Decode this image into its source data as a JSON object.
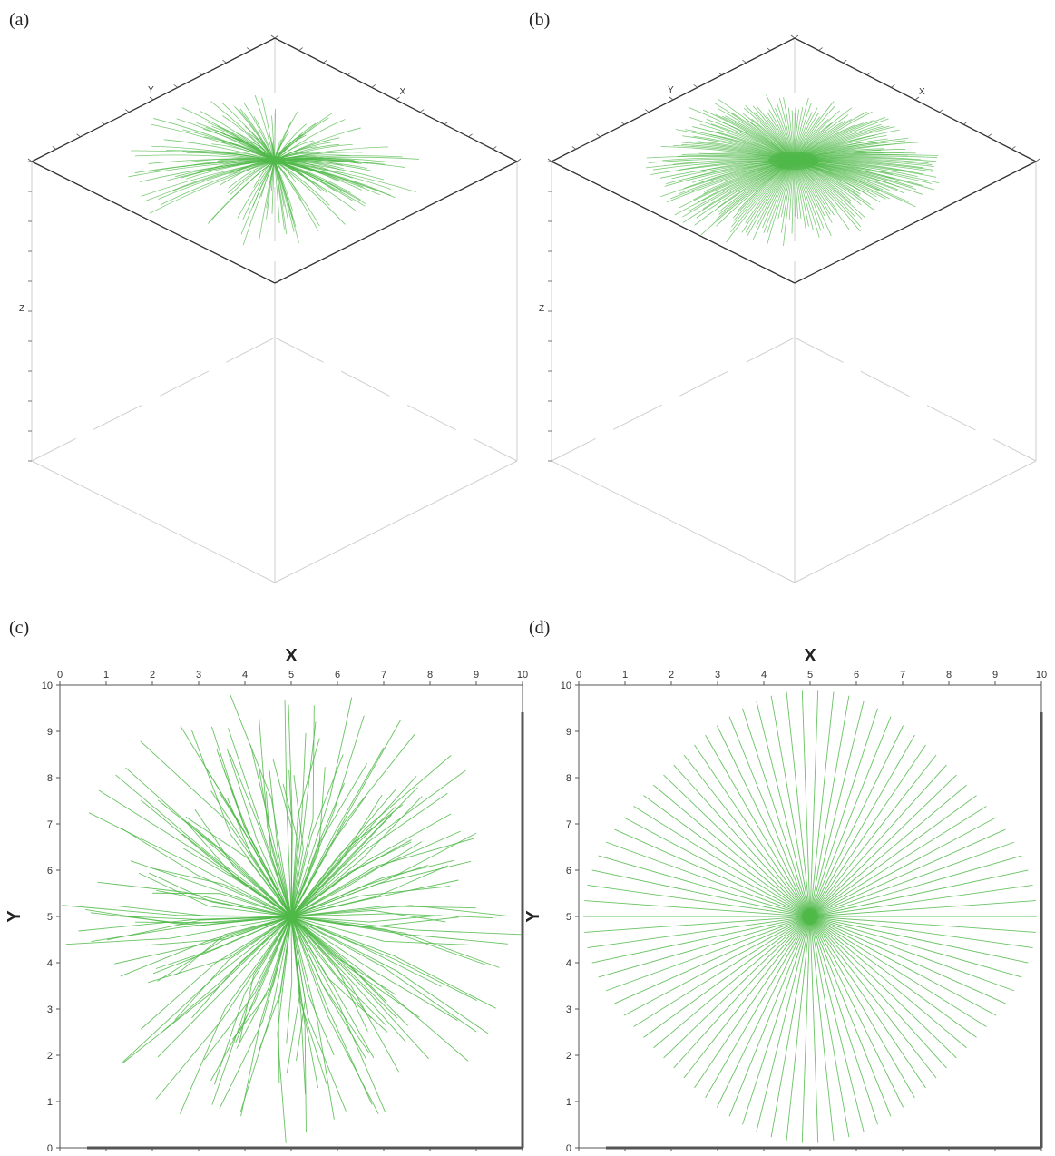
{
  "figure": {
    "panels": [
      {
        "id": "a",
        "label": "(a)"
      },
      {
        "id": "b",
        "label": "(b)"
      },
      {
        "id": "c",
        "label": "(c)"
      },
      {
        "id": "d",
        "label": "(d)"
      }
    ]
  },
  "colors": {
    "ray": "#4fb848",
    "frame": "#333333",
    "hidden_frame": "#cfcfcf"
  },
  "chart_data": [
    {
      "panel": "a",
      "type": "line",
      "projection": "3d",
      "axis_labels": {
        "x": "X",
        "y": "Y",
        "z": "Z"
      },
      "xlim": [
        0,
        10
      ],
      "ylim": [
        0,
        10
      ],
      "zlim": [
        0,
        10
      ],
      "source": [
        5,
        5,
        10
      ],
      "series": [
        {
          "rays": 180,
          "pattern": "scattered_fan",
          "max_radius": 4.8
        }
      ]
    },
    {
      "panel": "b",
      "type": "line",
      "projection": "3d",
      "axis_labels": {
        "x": "X",
        "y": "Y",
        "z": "Z"
      },
      "xlim": [
        0,
        10
      ],
      "ylim": [
        0,
        10
      ],
      "zlim": [
        0,
        10
      ],
      "source": [
        5,
        5,
        10
      ],
      "series": [
        {
          "rays": 220,
          "pattern": "regular_fan",
          "max_radius": 4.8
        }
      ]
    },
    {
      "panel": "c",
      "type": "line",
      "xlabel": "X",
      "ylabel": "Y",
      "xlim": [
        0,
        10
      ],
      "ylim": [
        0,
        10
      ],
      "xticks": [
        "0",
        "1",
        "2",
        "3",
        "4",
        "5",
        "6",
        "7",
        "8",
        "9",
        "10"
      ],
      "yticks": [
        "0",
        "1",
        "2",
        "3",
        "4",
        "5",
        "6",
        "7",
        "8",
        "9",
        "10"
      ],
      "source": [
        5,
        5
      ],
      "series": [
        {
          "rays": 170,
          "pattern": "scattered_star",
          "max_radius": 5.0
        }
      ]
    },
    {
      "panel": "d",
      "type": "line",
      "xlabel": "X",
      "ylabel": "Y",
      "xlim": [
        0,
        10
      ],
      "ylim": [
        0,
        10
      ],
      "xticks": [
        "0",
        "1",
        "2",
        "3",
        "4",
        "5",
        "6",
        "7",
        "8",
        "9",
        "10"
      ],
      "yticks": [
        "0",
        "1",
        "2",
        "3",
        "4",
        "5",
        "6",
        "7",
        "8",
        "9",
        "10"
      ],
      "source": [
        5,
        5
      ],
      "series": [
        {
          "rays": 90,
          "pattern": "regular_star",
          "max_radius": 5.0
        }
      ]
    }
  ]
}
